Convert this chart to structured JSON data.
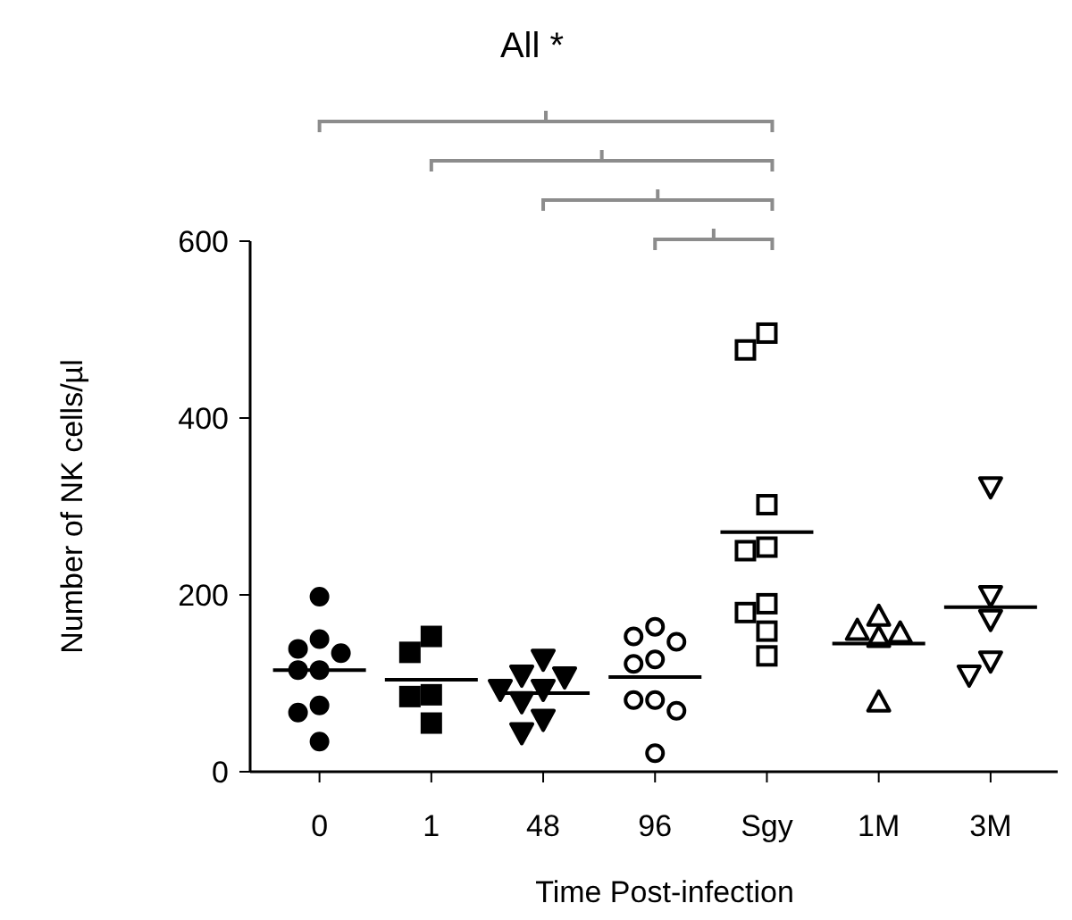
{
  "chart_data": {
    "type": "scatter",
    "xlabel": "Time Post-infection",
    "ylabel": "Number of NK cells/µl",
    "annotations": [
      "All *"
    ],
    "categories": [
      "0",
      "1",
      "48",
      "96",
      "Sgy",
      "1M",
      "3M"
    ],
    "ylim": [
      0,
      600
    ],
    "yticks": [
      0,
      200,
      400,
      600
    ],
    "grid": false,
    "series": [
      {
        "color": "#000000",
        "marker": "circle",
        "x": [
          "0",
          "0",
          "0",
          "0",
          "0",
          "0",
          "0",
          "0",
          "0"
        ],
        "values": [
          198,
          150,
          139,
          134,
          115,
          115,
          75,
          67,
          34
        ]
      },
      {
        "color": "#000000",
        "marker": "square",
        "x": [
          "1",
          "1",
          "1",
          "1",
          "1"
        ],
        "values": [
          153,
          135,
          87,
          85,
          55
        ]
      },
      {
        "color": "#000000",
        "marker": "triangle",
        "x": [
          "48",
          "48",
          "48",
          "48",
          "48",
          "48",
          "48",
          "48"
        ],
        "values": [
          127,
          109,
          107,
          93,
          93,
          79,
          59,
          44
        ]
      },
      {
        "color": "#ffffff",
        "marker": "circle",
        "x": [
          "96",
          "96",
          "96",
          "96",
          "96",
          "96",
          "96",
          "96",
          "96"
        ],
        "values": [
          164,
          153,
          147,
          127,
          122,
          81,
          81,
          69,
          21
        ]
      },
      {
        "color": "#ffffff",
        "marker": "square",
        "x": [
          "Sgy",
          "Sgy",
          "Sgy",
          "Sgy",
          "Sgy",
          "Sgy",
          "Sgy",
          "Sgy",
          "Sgy"
        ],
        "values": [
          496,
          477,
          302,
          254,
          250,
          190,
          180,
          159,
          131
        ]
      },
      {
        "color": "#ffffff",
        "marker": "triangle",
        "x": [
          "1M",
          "1M",
          "1M",
          "1M",
          "1M"
        ],
        "values": [
          176,
          160,
          157,
          152,
          79
        ]
      },
      {
        "color": "#ffffff",
        "marker": "triangle",
        "x": [
          "3M",
          "3M",
          "3M",
          "3M",
          "3M"
        ],
        "values": [
          322,
          199,
          172,
          125,
          109
        ]
      },
      {
        "type": "box",
        "color": "#000000",
        "boxes": [
          {
            "low": 115,
            "q1": 115,
            "median": 115,
            "q3": 115,
            "high": 115
          },
          {
            "low": 104,
            "q1": 104,
            "median": 104,
            "q3": 104,
            "high": 104
          },
          {
            "low": 89,
            "q1": 89,
            "median": 89,
            "q3": 89,
            "high": 89
          },
          {
            "low": 107,
            "q1": 107,
            "median": 107,
            "q3": 107,
            "high": 107
          },
          {
            "low": 271,
            "q1": 271,
            "median": 271,
            "q3": 271,
            "high": 271
          },
          {
            "low": 145,
            "q1": 145,
            "median": 145,
            "q3": 145,
            "high": 145
          },
          {
            "low": 186,
            "q1": 186,
            "median": 186,
            "q3": 186,
            "high": 186
          }
        ]
      }
    ]
  }
}
